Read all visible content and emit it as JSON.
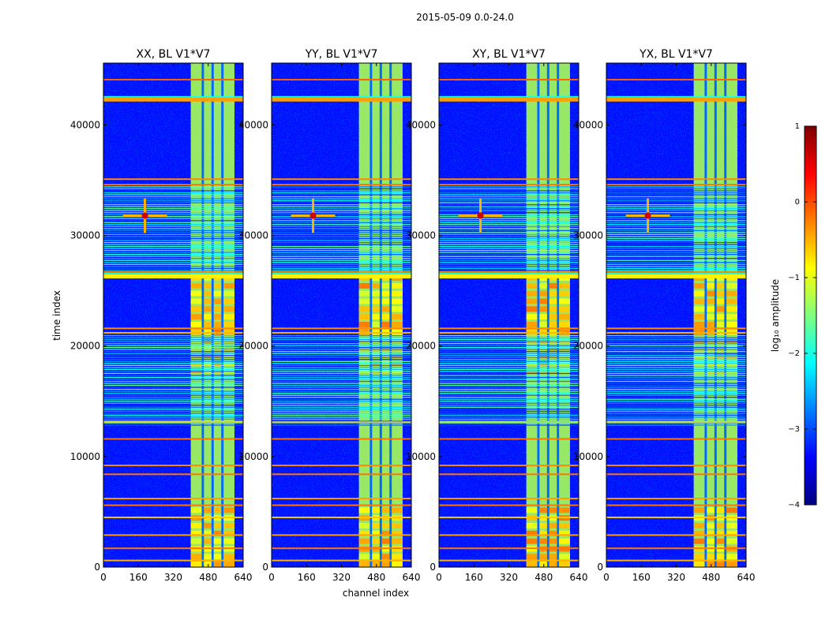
{
  "figure": {
    "suptitle": "2015-05-09 0.0-24.0",
    "xlabel": "channel index",
    "ylabel": "time index"
  },
  "chart_data": {
    "type": "heatmap",
    "x_ticks": [
      0,
      160,
      320,
      480,
      640
    ],
    "y_ticks": [
      0,
      10000,
      20000,
      30000,
      40000
    ],
    "xlim": [
      0,
      640
    ],
    "ylim": [
      0,
      45600
    ],
    "panels": [
      {
        "title": "XX, BL V1*V7",
        "hot_stripes": true
      },
      {
        "title": "YY, BL V1*V7",
        "hot_stripes": true
      },
      {
        "title": "XY, BL V1*V7",
        "hot_stripes": false
      },
      {
        "title": "YX, BL V1*V7",
        "hot_stripes": false
      }
    ],
    "rfi_lines": [
      {
        "t": 44100,
        "value": -0.1
      },
      {
        "t": 42300,
        "value": -0.4,
        "thick": true
      },
      {
        "t": 35100,
        "value": -0.3
      },
      {
        "t": 34600,
        "value": -0.2
      },
      {
        "t": 26700,
        "value": -0.3
      },
      {
        "t": 26300,
        "value": -0.8,
        "thick": true
      },
      {
        "t": 21600,
        "value": -0.3
      },
      {
        "t": 21200,
        "value": -0.5
      },
      {
        "t": 13100,
        "value": -0.6
      },
      {
        "t": 11600,
        "value": -0.2
      },
      {
        "t": 9200,
        "value": -0.3
      },
      {
        "t": 8400,
        "value": -0.2
      },
      {
        "t": 6200,
        "value": -0.4
      },
      {
        "t": 5600,
        "value": -0.2
      },
      {
        "t": 4500,
        "value": -0.6
      },
      {
        "t": 2900,
        "value": -0.4
      },
      {
        "t": 1700,
        "value": -0.2
      },
      {
        "t": 600,
        "value": -0.5
      }
    ],
    "dense_line_bands": [
      [
        12800,
        21000
      ],
      [
        26800,
        34600
      ]
    ],
    "bright_channel_block": [
      400,
      600
    ],
    "hot_spot": {
      "channel": 190,
      "time": 31800
    },
    "colorbar": {
      "label": "log₁₀ amplitude",
      "range": [
        -4,
        1
      ],
      "ticks": [
        "1",
        "0",
        "−1",
        "−2",
        "−3",
        "−4"
      ],
      "colormap": [
        "#00007f",
        "#0000ff",
        "#007fff",
        "#00ffff",
        "#7fff7f",
        "#ffff00",
        "#ff7f00",
        "#ff0000",
        "#7f0000"
      ]
    }
  }
}
